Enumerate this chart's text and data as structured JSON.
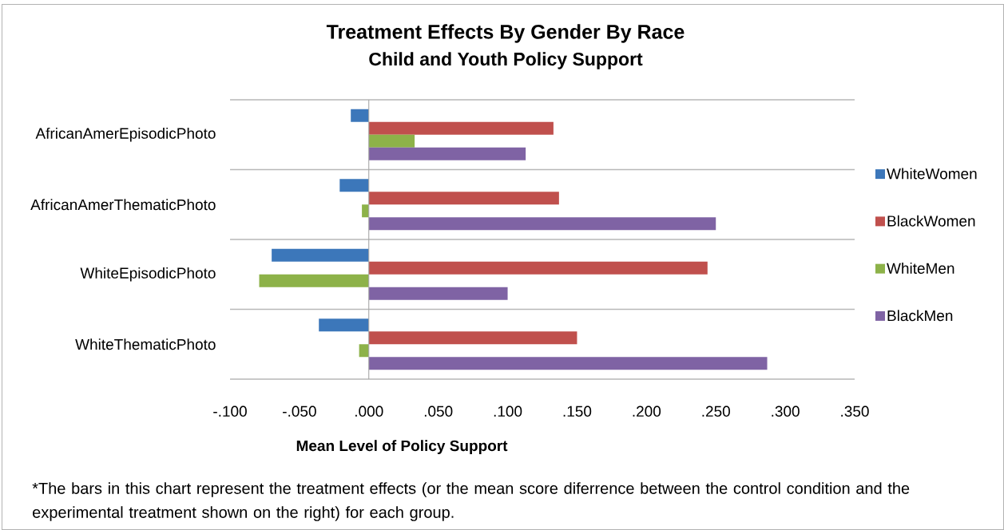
{
  "chart_data": {
    "type": "bar",
    "orientation": "horizontal",
    "title": "Treatment Effects By Gender By Race",
    "subtitle": "Child and Youth Policy Support",
    "xlabel": "Mean Level of Policy Support",
    "categories": [
      "AfricanAmerEpisodicPhoto",
      "AfricanAmerThematicPhoto",
      "WhiteEpisodicPhoto",
      "WhiteThematicPhoto"
    ],
    "series": [
      {
        "name": "WhiteWomen",
        "color": "#3c77ba",
        "values": [
          -0.013,
          -0.021,
          -0.07,
          -0.036
        ]
      },
      {
        "name": "BlackWomen",
        "color": "#c0504d",
        "values": [
          0.133,
          0.137,
          0.244,
          0.15
        ]
      },
      {
        "name": "WhiteMen",
        "color": "#8db249",
        "values": [
          0.033,
          -0.005,
          -0.079,
          -0.007
        ]
      },
      {
        "name": "BlackMen",
        "color": "#7f63a4",
        "values": [
          0.113,
          0.25,
          0.1,
          0.287
        ]
      }
    ],
    "xlim": [
      -0.1,
      0.35
    ],
    "xticks": [
      {
        "value": -0.1,
        "label": "-.100"
      },
      {
        "value": -0.05,
        "label": "-.050"
      },
      {
        "value": 0,
        "label": ".000"
      },
      {
        "value": 0.05,
        "label": ".050"
      },
      {
        "value": 0.1,
        "label": ".100"
      },
      {
        "value": 0.15,
        "label": ".150"
      },
      {
        "value": 0.2,
        "label": ".200"
      },
      {
        "value": 0.25,
        "label": ".250"
      },
      {
        "value": 0.3,
        "label": ".300"
      },
      {
        "value": 0.35,
        "label": ".350"
      }
    ],
    "grid": "y",
    "legend": "right",
    "annotations": [
      "*The bars in this chart represent the treatment effects (or the mean score diferrence between the control condition and the experimental treatment shown on the right) for each group."
    ]
  }
}
